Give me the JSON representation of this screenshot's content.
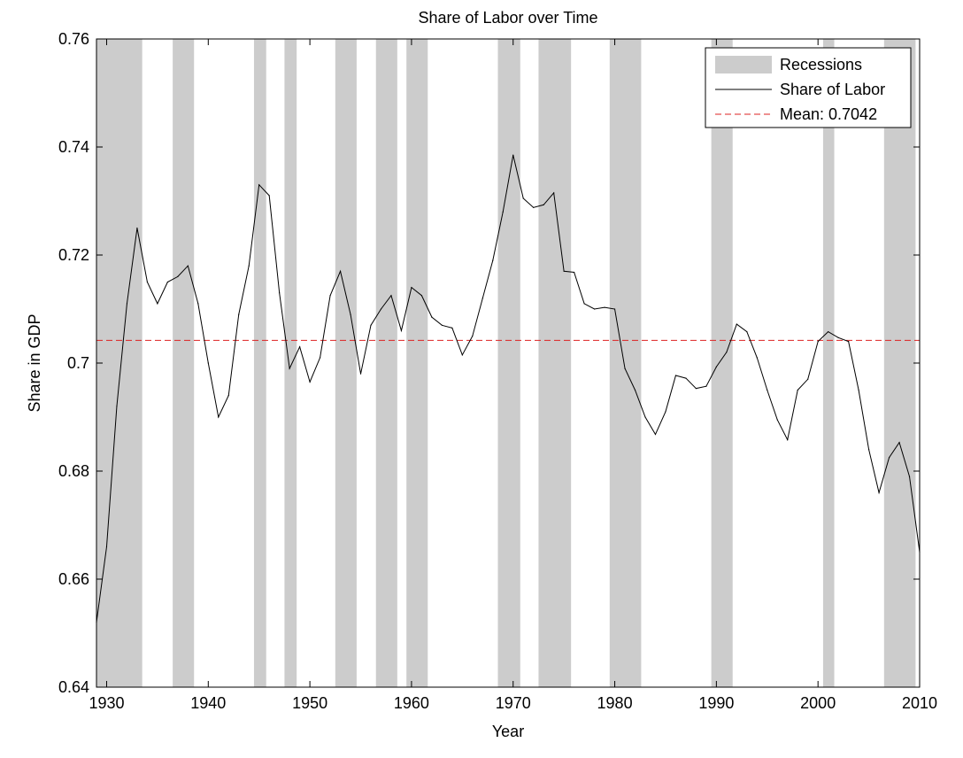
{
  "chart_data": {
    "type": "line",
    "title": "Share of Labor over Time",
    "xlabel": "Year",
    "ylabel": "Share in GDP",
    "xlim": [
      1929,
      2010
    ],
    "ylim": [
      0.64,
      0.76
    ],
    "x_ticks": [
      1930,
      1940,
      1950,
      1960,
      1970,
      1980,
      1990,
      2000,
      2010
    ],
    "y_ticks": [
      0.64,
      0.66,
      0.68,
      0.7,
      0.72,
      0.74,
      0.76
    ],
    "y_tick_labels": [
      "0.64",
      "0.66",
      "0.68",
      "0.7",
      "0.72",
      "0.74",
      "0.76"
    ],
    "x_tick_labels": [
      "1930",
      "1940",
      "1950",
      "1960",
      "1970",
      "1980",
      "1990",
      "2000",
      "2010"
    ],
    "grid": false,
    "legend": {
      "placement": "top-right",
      "entries": [
        {
          "label": "Recessions",
          "kind": "patch",
          "color": "#cccccc"
        },
        {
          "label": "Share of Labor",
          "kind": "line",
          "color": "#000000"
        },
        {
          "label": "Mean: 0.7042",
          "kind": "dashed-line",
          "color": "#dd2222"
        }
      ]
    },
    "recessions": [
      [
        1929.0,
        1933.5
      ],
      [
        1936.5,
        1938.6
      ],
      [
        1944.5,
        1945.7
      ],
      [
        1947.5,
        1948.7
      ],
      [
        1952.5,
        1954.6
      ],
      [
        1956.5,
        1958.6
      ],
      [
        1959.5,
        1961.6
      ],
      [
        1968.5,
        1970.7
      ],
      [
        1972.5,
        1975.7
      ],
      [
        1979.5,
        1982.6
      ],
      [
        1989.5,
        1991.6
      ],
      [
        2000.5,
        2001.6
      ],
      [
        2006.5,
        2009.6
      ]
    ],
    "mean": 0.7042,
    "series": [
      {
        "name": "Share of Labor",
        "color": "#000000",
        "x": [
          1929,
          1930,
          1931,
          1932,
          1933,
          1934,
          1935,
          1936,
          1937,
          1938,
          1939,
          1940,
          1941,
          1942,
          1943,
          1944,
          1945,
          1946,
          1947,
          1948,
          1949,
          1950,
          1951,
          1952,
          1953,
          1954,
          1955,
          1956,
          1957,
          1958,
          1959,
          1960,
          1961,
          1962,
          1963,
          1964,
          1965,
          1966,
          1967,
          1968,
          1969,
          1970,
          1971,
          1972,
          1973,
          1974,
          1975,
          1976,
          1977,
          1978,
          1979,
          1980,
          1981,
          1982,
          1983,
          1984,
          1985,
          1986,
          1987,
          1988,
          1989,
          1990,
          1991,
          1992,
          1993,
          1994,
          1995,
          1996,
          1997,
          1998,
          1999,
          2000,
          2001,
          2002,
          2003,
          2004,
          2005,
          2006,
          2007,
          2008,
          2009,
          2010
        ],
        "y": [
          0.652,
          0.666,
          0.692,
          0.711,
          0.725,
          0.715,
          0.711,
          0.715,
          0.716,
          0.718,
          0.711,
          0.7,
          0.69,
          0.694,
          0.709,
          0.718,
          0.733,
          0.731,
          0.713,
          0.699,
          0.703,
          0.6965,
          0.701,
          0.7125,
          0.717,
          0.709,
          0.698,
          0.707,
          0.71,
          0.7125,
          0.706,
          0.714,
          0.7125,
          0.7085,
          0.707,
          0.7065,
          0.7015,
          0.705,
          0.712,
          0.719,
          0.728,
          0.7385,
          0.7305,
          0.7288,
          0.7293,
          0.7315,
          0.717,
          0.7168,
          0.711,
          0.71,
          0.7103,
          0.71,
          0.699,
          0.695,
          0.69,
          0.6868,
          0.691,
          0.6977,
          0.6972,
          0.6953,
          0.6957,
          0.6993,
          0.702,
          0.7072,
          0.7058,
          0.701,
          0.695,
          0.6895,
          0.6858,
          0.695,
          0.697,
          0.704,
          0.7058,
          0.7047,
          0.704,
          0.695,
          0.684,
          0.676,
          0.6825,
          0.6853,
          0.679,
          0.665
        ]
      }
    ]
  }
}
